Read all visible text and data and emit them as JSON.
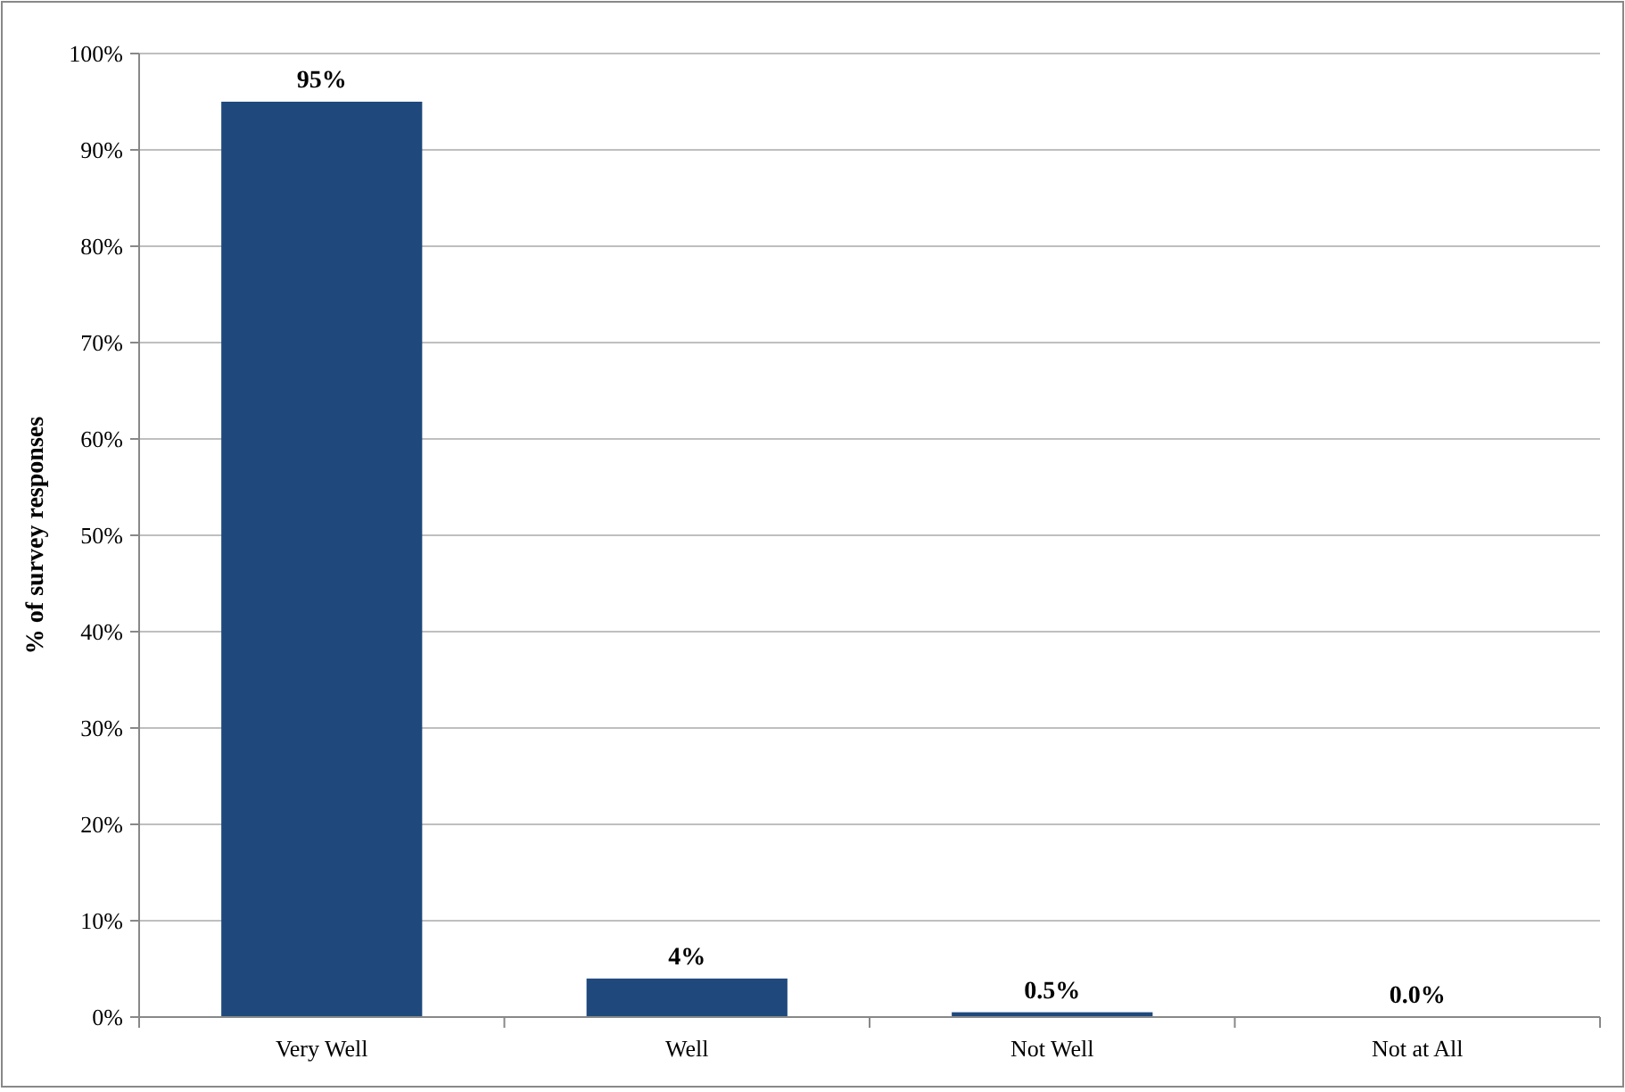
{
  "chart_data": {
    "type": "bar",
    "ylabel": "% of survey responses",
    "categories": [
      "Very Well",
      "Well",
      "Not Well",
      "Not at All"
    ],
    "values": [
      95,
      4,
      0.5,
      0
    ],
    "value_labels": [
      "95%",
      "4%",
      "0.5%",
      "0.0%"
    ],
    "color": "#1f497d",
    "ylim": [
      0,
      100
    ],
    "yticks": [
      {
        "value": 0,
        "label": "0%"
      },
      {
        "value": 10,
        "label": "10%"
      },
      {
        "value": 20,
        "label": "20%"
      },
      {
        "value": 30,
        "label": "30%"
      },
      {
        "value": 40,
        "label": "40%"
      },
      {
        "value": 50,
        "label": "50%"
      },
      {
        "value": 60,
        "label": "60%"
      },
      {
        "value": 70,
        "label": "70%"
      },
      {
        "value": 80,
        "label": "80%"
      },
      {
        "value": 90,
        "label": "90%"
      },
      {
        "value": 100,
        "label": "100%"
      }
    ],
    "grid": "y"
  }
}
